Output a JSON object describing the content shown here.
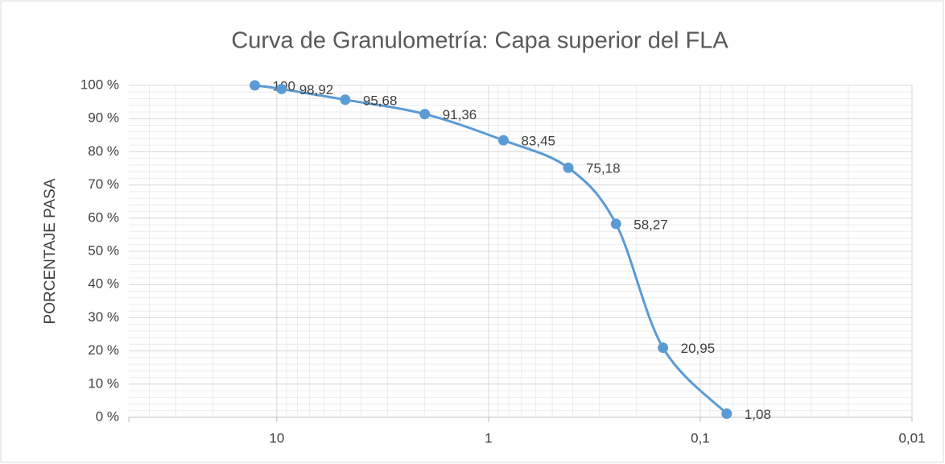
{
  "chart_data": {
    "type": "line",
    "title": "Curva de Granulometría: Capa superior del FLA",
    "y_label": "PORCENTAJE PASA",
    "x_log": true,
    "grid": true,
    "minor_grid": true,
    "xlim": [
      50,
      0.01
    ],
    "xticks": [
      10,
      1,
      {
        "value": 0.1,
        "label": "0,1"
      },
      {
        "value": 0.01,
        "label": "0,01"
      }
    ],
    "ylim": [
      0,
      100
    ],
    "yticks": [
      {
        "value": 0,
        "label": "0 %"
      },
      {
        "value": 10,
        "label": "10 %"
      },
      {
        "value": 20,
        "label": "20 %"
      },
      {
        "value": 30,
        "label": "30 %"
      },
      {
        "value": 40,
        "label": "40 %"
      },
      {
        "value": 50,
        "label": "50 %"
      },
      {
        "value": 60,
        "label": "60 %"
      },
      {
        "value": 70,
        "label": "70 %"
      },
      {
        "value": 80,
        "label": "80 %"
      },
      {
        "value": 90,
        "label": "90 %"
      },
      {
        "value": 100,
        "label": "100 %"
      }
    ],
    "x": [
      12.7,
      9.5,
      4.75,
      2.0,
      0.85,
      0.42,
      0.25,
      0.15,
      0.075
    ],
    "series": [
      {
        "color": "#5b9bd5",
        "values": [
          100,
          98.92,
          95.68,
          91.36,
          83.45,
          75.18,
          58.27,
          20.95,
          1.08
        ],
        "value_labels": [
          "100",
          "98,92",
          "95,68",
          "91,36",
          "83,45",
          "75,18",
          "58,27",
          "20,95",
          "1,08"
        ]
      }
    ]
  }
}
